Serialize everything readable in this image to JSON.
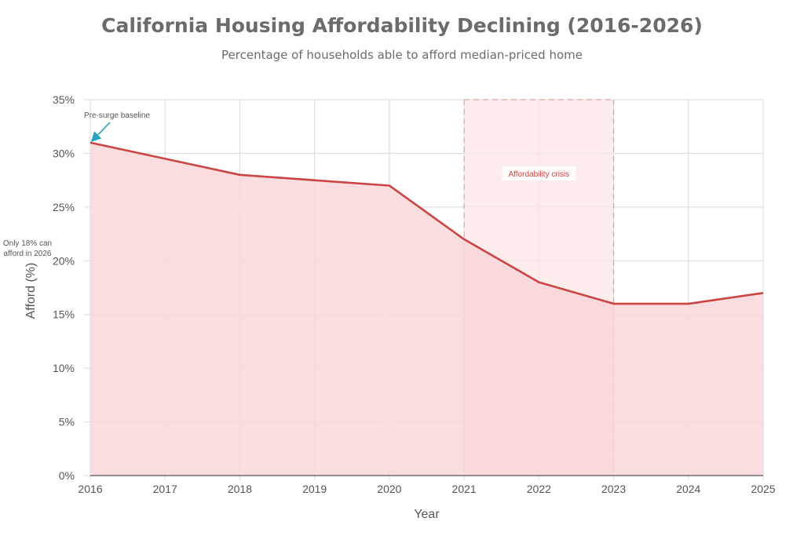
{
  "chart_data": {
    "type": "area",
    "title": "California Housing Affordability Declining (2016-2026)",
    "subtitle": "Percentage of households able to afford median-priced home",
    "xlabel": "Year",
    "ylabel": "Afford (%)",
    "x": [
      2016,
      2017,
      2018,
      2019,
      2020,
      2021,
      2022,
      2023,
      2024,
      2025
    ],
    "values": [
      31,
      29.5,
      28,
      27.5,
      27,
      22,
      18,
      16,
      16,
      17
    ],
    "xlim": [
      2016,
      2025
    ],
    "ylim": [
      0,
      35
    ],
    "y_ticks": [
      0,
      5,
      10,
      15,
      20,
      25,
      30,
      35
    ],
    "y_tick_labels": [
      "0%",
      "5%",
      "10%",
      "15%",
      "20%",
      "25%",
      "30%",
      "35%"
    ],
    "x_tick_labels": [
      "2016",
      "2017",
      "2018",
      "2019",
      "2020",
      "2021",
      "2022",
      "2023",
      "2024",
      "2025"
    ],
    "grid": true,
    "highlight_region": {
      "x_start": 2021,
      "x_end": 2023,
      "label": "Affordability crisis"
    },
    "annotations": [
      {
        "text": "Pre-surge baseline",
        "x": 2016,
        "y": 31
      },
      {
        "text_lines": [
          "Only 18% can",
          "afford in 2026"
        ]
      }
    ],
    "colors": {
      "line": "#cc4444",
      "fill": "#f8d7d9",
      "highlight": "#fbe5e6",
      "highlight_border": "#d9a3a3",
      "arrow": "#29a3bd",
      "grid": "#d9d9d9"
    }
  }
}
